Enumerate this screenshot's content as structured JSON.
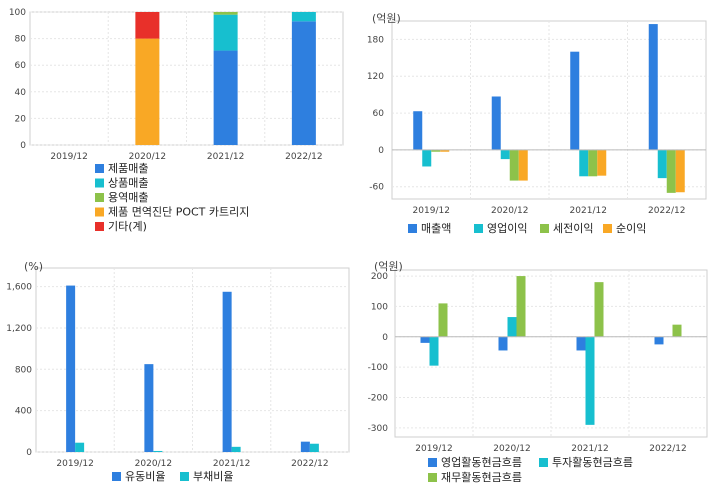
{
  "chart_data": [
    {
      "type": "bar",
      "stacked": true,
      "unit": "",
      "categories": [
        "2019/12",
        "2020/12",
        "2021/12",
        "2022/12"
      ],
      "ylim": [
        0,
        100
      ],
      "yticks": [
        0,
        20,
        40,
        60,
        80,
        100
      ],
      "ytick_labels": [
        "0",
        "20",
        "40",
        "60",
        "80",
        "100"
      ],
      "series": [
        {
          "name": "제품매출",
          "color": "#2e7fdf",
          "values": [
            0,
            0,
            71,
            93
          ]
        },
        {
          "name": "상품매출",
          "color": "#17bfcf",
          "values": [
            0,
            0,
            27,
            7
          ]
        },
        {
          "name": "용역매출",
          "color": "#8dc24a",
          "values": [
            0,
            0,
            2,
            0
          ]
        },
        {
          "name": "제품 면역진단 POCT 카트리지",
          "color": "#f9a825",
          "values": [
            0,
            80,
            0,
            0
          ]
        },
        {
          "name": "기타(계)",
          "color": "#e8302a",
          "values": [
            0,
            20,
            0,
            0
          ]
        }
      ],
      "grid": true,
      "legend_position": "bottom-left"
    },
    {
      "type": "bar",
      "unit": "(억원)",
      "categories": [
        "2019/12",
        "2020/12",
        "2021/12",
        "2022/12"
      ],
      "ylim": [
        -80,
        210
      ],
      "yticks": [
        -60,
        0,
        60,
        120,
        180
      ],
      "ytick_labels": [
        "-60",
        "0",
        "60",
        "120",
        "180"
      ],
      "series": [
        {
          "name": "매출액",
          "color": "#2e7fdf",
          "values": [
            63,
            87,
            160,
            205
          ]
        },
        {
          "name": "영업이익",
          "color": "#17bfcf",
          "values": [
            -27,
            -15,
            -43,
            -46
          ]
        },
        {
          "name": "세전이익",
          "color": "#8dc24a",
          "values": [
            -3,
            -50,
            -43,
            -70
          ]
        },
        {
          "name": "순이익",
          "color": "#f9a825",
          "values": [
            -3,
            -50,
            -42,
            -69
          ]
        }
      ],
      "grid": true,
      "legend_position": "bottom"
    },
    {
      "type": "bar",
      "unit": "(%)",
      "categories": [
        "2019/12",
        "2020/12",
        "2021/12",
        "2022/12"
      ],
      "ylim": [
        0,
        1780
      ],
      "yticks": [
        0,
        400,
        800,
        1200,
        1600
      ],
      "ytick_labels": [
        "0",
        "400",
        "800",
        "1,200",
        "1,600"
      ],
      "series": [
        {
          "name": "유동비율",
          "color": "#2e7fdf",
          "values": [
            1610,
            850,
            1550,
            100
          ]
        },
        {
          "name": "부채비율",
          "color": "#17bfcf",
          "values": [
            90,
            10,
            50,
            80
          ]
        }
      ],
      "grid": true,
      "legend_position": "bottom"
    },
    {
      "type": "bar",
      "unit": "(억원)",
      "categories": [
        "2019/12",
        "2020/12",
        "2021/12",
        "2022/12"
      ],
      "ylim": [
        -330,
        220
      ],
      "yticks": [
        -300,
        -200,
        -100,
        0,
        100,
        200
      ],
      "ytick_labels": [
        "-300",
        "-200",
        "-100",
        "0",
        "100",
        "200"
      ],
      "series": [
        {
          "name": "영업활동현금흐름",
          "color": "#2e7fdf",
          "values": [
            -20,
            -45,
            -45,
            -25
          ]
        },
        {
          "name": "투자활동현금흐름",
          "color": "#17bfcf",
          "values": [
            -95,
            65,
            -290,
            0
          ]
        },
        {
          "name": "재무활동현금흐름",
          "color": "#8dc24a",
          "values": [
            110,
            200,
            180,
            40
          ]
        }
      ],
      "grid": true,
      "legend_position": "bottom"
    }
  ]
}
